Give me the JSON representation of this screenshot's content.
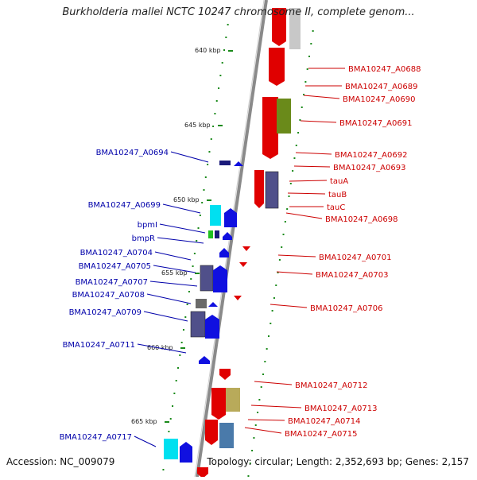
{
  "title": "Burkholderia mallei NCTC 10247 chromosome II, complete genom...",
  "footer": {
    "accession": "Accession: NC_009079",
    "summary": "Topology: circular; Length: 2,352,693 bp; Genes: 2,157"
  },
  "scale_labels": [
    "640 kbp",
    "645 kbp",
    "650 kbp",
    "655 kbp",
    "660 kbp",
    "665 kbp"
  ],
  "genes_left": [
    "BMA10247_A0694",
    "BMA10247_A0699",
    "bpmI",
    "bmpR",
    "BMA10247_A0704",
    "BMA10247_A0705",
    "BMA10247_A0707",
    "BMA10247_A0708",
    "BMA10247_A0709",
    "BMA10247_A0711",
    "BMA10247_A0717"
  ],
  "genes_right": [
    "BMA10247_A0688",
    "BMA10247_A0689",
    "BMA10247_A0690",
    "BMA10247_A0691",
    "BMA10247_A0692",
    "BMA10247_A0693",
    "tauA",
    "tauB",
    "tauC",
    "BMA10247_A0698",
    "BMA10247_A0701",
    "BMA10247_A0703",
    "BMA10247_A0706",
    "BMA10247_A0712",
    "BMA10247_A0713",
    "BMA10247_A0714",
    "BMA10247_A0715"
  ],
  "colors": {
    "backbone": "#8a8a8a",
    "forward_strand": "#e00000",
    "reverse_strand": "#1010e0",
    "right_label": "#cc0000",
    "left_label": "#0000aa",
    "tick": "#1a8a1a"
  }
}
